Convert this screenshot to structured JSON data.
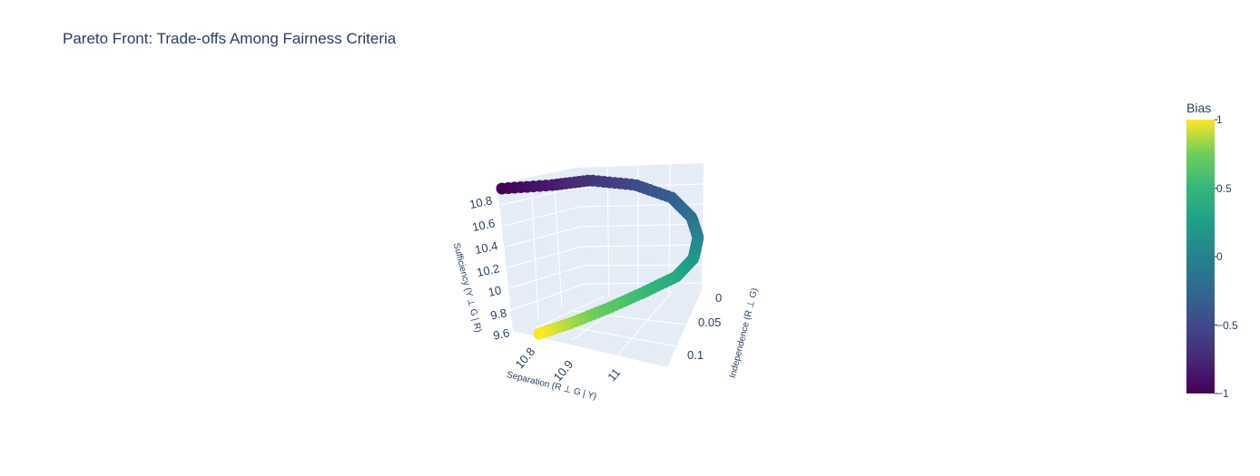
{
  "chart_data": {
    "type": "scatter",
    "title": "Pareto Front: Trade-offs Among Fairness Criteria",
    "axes": {
      "x": {
        "title": "Separation (R ⊥ G | Y)",
        "ticks": [
          "10.8",
          "10.9",
          "11"
        ],
        "range": [
          10.76,
          11.02
        ]
      },
      "y": {
        "title": "Independence (R ⊥ G)",
        "ticks": [
          "0",
          "0.05",
          "0.1"
        ],
        "range": [
          0,
          0.12
        ]
      },
      "z": {
        "title": "Sufficiency (Y ⊥ G | R)",
        "ticks": [
          "9.6",
          "9.8",
          "10",
          "10.2",
          "10.4",
          "10.6",
          "10.8"
        ],
        "range": [
          9.55,
          10.9
        ]
      }
    },
    "grid": true,
    "colorbar": {
      "title": "Bias",
      "colorscale": "Viridis",
      "range": [
        -1,
        1
      ],
      "ticks": [
        "1",
        "0.5",
        "0",
        "−0.5",
        "−1"
      ]
    },
    "points_summary": {
      "count": 100,
      "bias_range": [
        -1,
        1
      ],
      "start": {
        "bias": -1,
        "separation": 10.8,
        "independence": 0.1,
        "sufficiency": 10.8
      },
      "end": {
        "bias": 1,
        "separation": 10.8,
        "independence": 0.1,
        "sufficiency": 9.6
      },
      "shape": "curve arcing from the top-left, around the right side, and back down to the lower-left"
    },
    "marker_colors": [
      "#440154",
      "#3b528b",
      "#21918c",
      "#5ec962",
      "#fde725"
    ]
  }
}
